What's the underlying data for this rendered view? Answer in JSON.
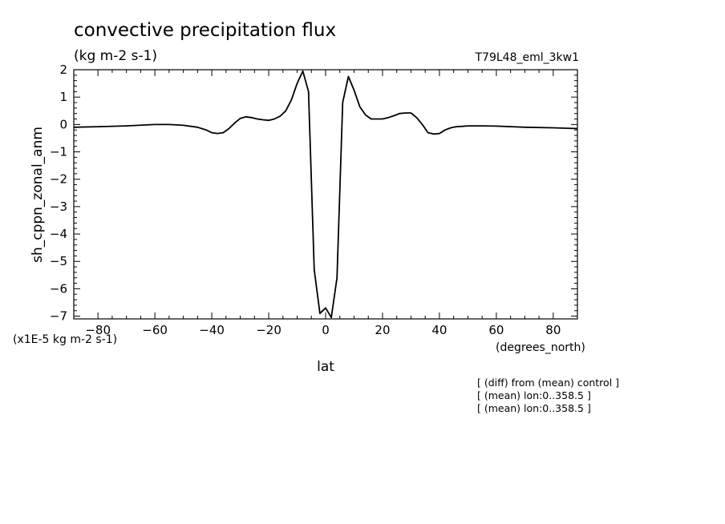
{
  "chart_data": {
    "type": "line",
    "title": "convective precipitation flux",
    "subtitle": "(kg m-2 s-1)",
    "run_label": "T79L48_eml_3kw1",
    "xlabel": "lat",
    "x_units": "(degrees_north)",
    "ylabel": "sh_cppn_zonal_anm",
    "y_scale_note": "(x1E-5 kg m-2 s-1)",
    "xlim": [
      -88.5,
      88.5
    ],
    "ylim": [
      -7.1,
      2.0
    ],
    "x_ticks": [
      -80,
      -60,
      -40,
      -20,
      0,
      20,
      40,
      60,
      80
    ],
    "x_tick_labels": [
      "-80",
      "-60",
      "-40",
      "-20",
      "0",
      "20",
      "40",
      "60",
      "80"
    ],
    "y_ticks": [
      2,
      1,
      0,
      -1,
      -2,
      -3,
      -4,
      -5,
      -6,
      -7
    ],
    "y_tick_labels": [
      "2",
      "1",
      "0",
      "-1",
      "-2",
      "-3",
      "-4",
      "-5",
      "-6",
      "-7"
    ],
    "grid": false,
    "series": [
      {
        "x": [
          -88.5,
          -80,
          -70,
          -60,
          -55,
          -50,
          -45,
          -42,
          -40,
          -38,
          -36,
          -34,
          -32,
          -30,
          -28,
          -26,
          -24,
          -22,
          -20,
          -18,
          -16,
          -14,
          -12,
          -10,
          -8,
          -6,
          -4,
          -2,
          0,
          2,
          4,
          6,
          8,
          10,
          12,
          14,
          16,
          18,
          20,
          22,
          24,
          26,
          28,
          30,
          32,
          34,
          36,
          38,
          40,
          42,
          44,
          46,
          48,
          50,
          55,
          60,
          70,
          80,
          88.5
        ],
        "y": [
          -0.1,
          -0.08,
          -0.05,
          0.0,
          0.0,
          -0.03,
          -0.1,
          -0.2,
          -0.3,
          -0.33,
          -0.3,
          -0.15,
          0.05,
          0.22,
          0.28,
          0.25,
          0.2,
          0.17,
          0.15,
          0.2,
          0.3,
          0.5,
          0.9,
          1.5,
          1.95,
          1.2,
          -5.3,
          -6.9,
          -6.7,
          -7.05,
          -5.6,
          0.8,
          1.75,
          1.25,
          0.65,
          0.35,
          0.2,
          0.2,
          0.2,
          0.25,
          0.32,
          0.4,
          0.42,
          0.42,
          0.25,
          0.0,
          -0.3,
          -0.35,
          -0.33,
          -0.2,
          -0.12,
          -0.08,
          -0.07,
          -0.05,
          -0.05,
          -0.06,
          -0.1,
          -0.12,
          -0.15
        ]
      }
    ],
    "annotations": [
      "[ (diff) from (mean) control ]",
      "[ (mean) lon:0..358.5 ]",
      "[ (mean) lon:0..358.5 ]"
    ]
  }
}
